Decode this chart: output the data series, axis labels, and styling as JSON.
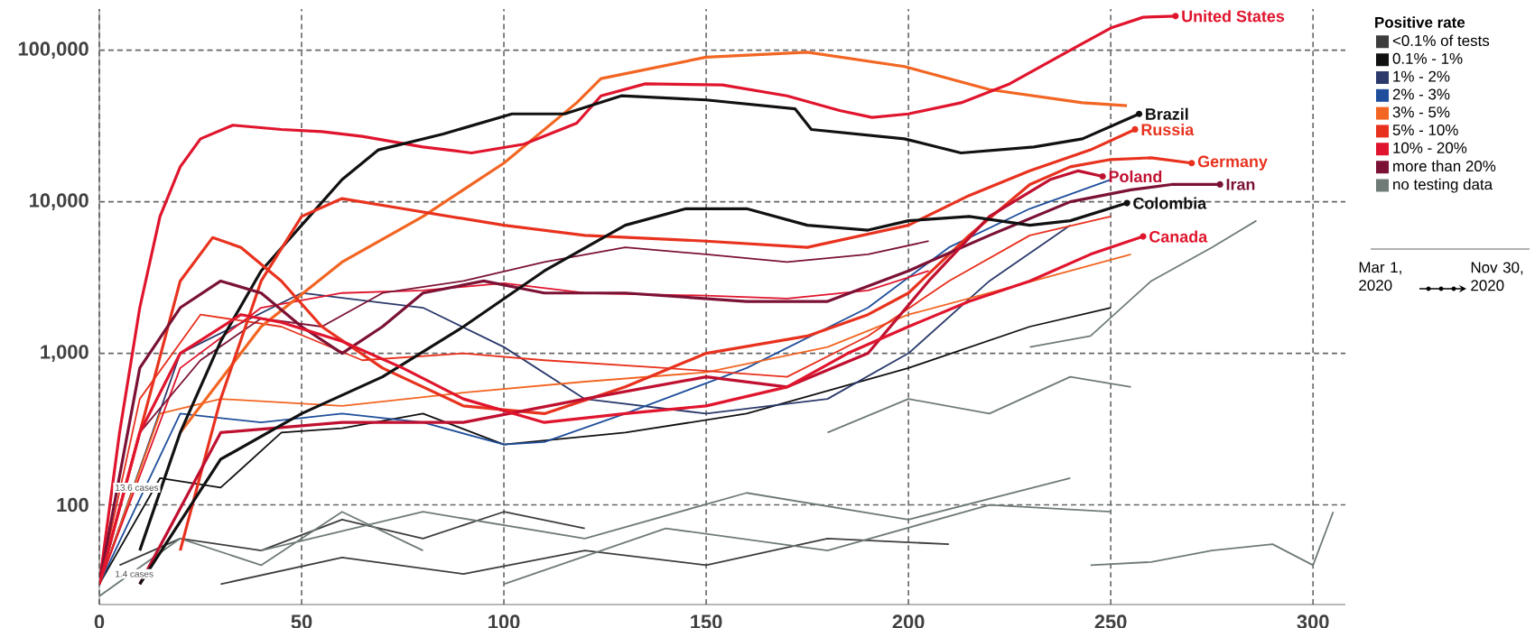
{
  "chart_data": {
    "type": "line",
    "legend_title": "Positive rate",
    "legend": "right",
    "grid": true,
    "log": "y",
    "marker": "none",
    "line_style": "solid",
    "xlim": [
      0,
      308
    ],
    "ylim": [
      22,
      187000
    ],
    "xticks": [
      0,
      50,
      100,
      150,
      200,
      250,
      300
    ],
    "yticks": [
      {
        "value": 100,
        "label": "100"
      },
      {
        "value": 1000,
        "label": "1,000"
      },
      {
        "value": 10000,
        "label": "10,000"
      },
      {
        "value": 100000,
        "label": "100,000"
      }
    ],
    "series": [
      {
        "name": "<0.1% of tests",
        "color": "#3d3d3d",
        "x": [
          5,
          20,
          40,
          60,
          80,
          100,
          120,
          null,
          30,
          60,
          90,
          120,
          150,
          180,
          210
        ],
        "values": [
          40,
          60,
          50,
          80,
          60,
          90,
          70,
          null,
          30,
          45,
          35,
          50,
          40,
          60,
          55
        ]
      },
      {
        "name": "0.1% - 1%",
        "color": "#111111",
        "x": [
          0,
          15,
          30,
          45,
          60,
          80,
          100,
          130,
          160,
          200,
          230,
          250
        ],
        "values": [
          30,
          150,
          130,
          300,
          320,
          400,
          250,
          300,
          400,
          800,
          1500,
          2000
        ]
      },
      {
        "name": "1% - 2%",
        "color": "#2b3a6b",
        "x": [
          0,
          20,
          50,
          80,
          100,
          120,
          150,
          180,
          200,
          220,
          240
        ],
        "values": [
          30,
          1000,
          2500,
          2000,
          1100,
          500,
          400,
          500,
          1000,
          3000,
          7000
        ]
      },
      {
        "name": "2% - 3%",
        "color": "#1f4e9c",
        "x": [
          0,
          20,
          40,
          60,
          80,
          100,
          110,
          130,
          160,
          190,
          210,
          230,
          250
        ],
        "values": [
          30,
          400,
          350,
          400,
          350,
          250,
          260,
          400,
          800,
          2000,
          5000,
          9000,
          14000
        ]
      },
      {
        "name": "3% - 5%",
        "color": "#f26522",
        "x": [
          0,
          15,
          30,
          60,
          90,
          120,
          150,
          180,
          200,
          220,
          240,
          255
        ],
        "values": [
          30,
          400,
          500,
          450,
          550,
          650,
          750,
          1100,
          1800,
          2500,
          3500,
          4500
        ]
      },
      {
        "name": "5% - 10%",
        "color": "#e8321e",
        "x": [
          0,
          10,
          25,
          45,
          65,
          90,
          110,
          140,
          170,
          190,
          210,
          230,
          250
        ],
        "values": [
          30,
          500,
          1800,
          1500,
          900,
          1000,
          900,
          800,
          700,
          1300,
          3000,
          6000,
          8000
        ]
      },
      {
        "name": "10% - 20%",
        "color": "#e0152d",
        "x": [
          0,
          20,
          40,
          60,
          80,
          100,
          120,
          150,
          170,
          190,
          205
        ],
        "values": [
          30,
          800,
          2000,
          2500,
          2600,
          2900,
          2500,
          2400,
          2300,
          2600,
          3500
        ]
      },
      {
        "name": "more than 20%",
        "color": "#7b1235",
        "x": [
          0,
          10,
          25,
          40,
          55,
          70,
          90,
          110,
          130,
          150,
          170,
          190,
          205
        ],
        "values": [
          30,
          300,
          900,
          1700,
          1500,
          2500,
          3000,
          4000,
          5000,
          4500,
          4000,
          4500,
          5500
        ]
      },
      {
        "name": "no testing data",
        "color": "#6e7b76",
        "x": [
          0,
          20,
          40,
          60,
          80,
          null,
          40,
          80,
          120,
          160,
          200,
          240,
          null,
          100,
          140,
          180,
          220,
          250,
          null,
          180,
          200,
          220,
          240,
          255,
          null,
          230,
          245,
          260,
          275,
          286,
          null,
          245,
          260,
          275,
          290,
          300,
          null,
          300,
          305
        ],
        "values": [
          25,
          60,
          40,
          90,
          50,
          null,
          50,
          90,
          60,
          120,
          80,
          150,
          null,
          30,
          70,
          50,
          100,
          90,
          null,
          300,
          500,
          400,
          700,
          600,
          null,
          1100,
          1300,
          3000,
          5000,
          7500,
          null,
          40,
          42,
          50,
          55,
          40,
          null,
          40,
          90
        ]
      },
      {
        "color": "#f26522",
        "x": [
          20,
          40,
          60,
          80,
          100,
          118,
          124,
          150,
          175,
          199,
          220,
          243,
          254
        ],
        "values": [
          300,
          1500,
          4000,
          8000,
          18000,
          45000,
          65000,
          90000,
          97000,
          78000,
          55000,
          45000,
          43000
        ]
      },
      {
        "color": "#e0152d",
        "x": [
          0,
          5,
          10,
          15,
          20,
          25,
          33,
          45,
          55,
          65,
          80,
          92,
          105,
          118,
          124,
          135,
          154,
          170,
          183,
          191,
          200,
          213,
          225,
          240,
          250,
          258,
          266
        ],
        "values": [
          30,
          300,
          2000,
          8000,
          17000,
          26000,
          32000,
          30000,
          29000,
          27000,
          23000,
          21000,
          24000,
          33000,
          50000,
          60000,
          59000,
          50000,
          40000,
          36000,
          38000,
          45000,
          60000,
          100000,
          140000,
          165000,
          168000
        ]
      },
      {
        "color": "#111111",
        "x": [
          10,
          20,
          30,
          40,
          50,
          60,
          69,
          85,
          102,
          115,
          129,
          150,
          172,
          176,
          199,
          213,
          231,
          243,
          257
        ],
        "values": [
          50,
          300,
          1200,
          3500,
          7000,
          14000,
          22000,
          28000,
          38000,
          38000,
          50000,
          47000,
          41000,
          30000,
          26000,
          21000,
          23000,
          26000,
          38000
        ]
      },
      {
        "color": "#e8321e",
        "x": [
          20,
          30,
          40,
          50,
          60,
          75,
          100,
          120,
          150,
          175,
          200,
          215,
          230,
          245,
          256
        ],
        "values": [
          50,
          500,
          3000,
          8000,
          10500,
          9000,
          7000,
          6000,
          5500,
          5000,
          7000,
          11000,
          16000,
          22000,
          30000
        ]
      },
      {
        "color": "#e8321e",
        "x": [
          0,
          10,
          20,
          28,
          35,
          45,
          55,
          70,
          90,
          110,
          130,
          150,
          175,
          190,
          200,
          215,
          230,
          240,
          250,
          260,
          270
        ],
        "values": [
          30,
          300,
          3000,
          5800,
          5000,
          3000,
          1500,
          800,
          450,
          400,
          600,
          1000,
          1300,
          1800,
          2500,
          6000,
          13000,
          17000,
          19000,
          19500,
          18000
        ]
      },
      {
        "color": "#7b1235",
        "x": [
          0,
          10,
          20,
          30,
          40,
          50,
          60,
          70,
          80,
          95,
          110,
          130,
          160,
          180,
          200,
          220,
          240,
          255,
          265,
          277
        ],
        "values": [
          30,
          800,
          2000,
          3000,
          2500,
          1500,
          1000,
          1500,
          2500,
          3000,
          2500,
          2500,
          2200,
          2200,
          3500,
          6000,
          10000,
          12000,
          13000,
          13000
        ]
      },
      {
        "color": "#c01030",
        "x": [
          10,
          30,
          60,
          90,
          120,
          150,
          170,
          190,
          205,
          220,
          235,
          242,
          248
        ],
        "values": [
          30,
          300,
          350,
          350,
          500,
          700,
          600,
          1000,
          3000,
          8000,
          14000,
          16000,
          14700
        ]
      },
      {
        "color": "#111111",
        "x": [
          10,
          30,
          50,
          70,
          90,
          110,
          130,
          145,
          160,
          175,
          190,
          200,
          215,
          230,
          240,
          254
        ],
        "values": [
          30,
          200,
          400,
          700,
          1500,
          3500,
          7000,
          9000,
          9000,
          7000,
          6500,
          7500,
          8000,
          7000,
          7500,
          9800
        ]
      },
      {
        "color": "#e0152d",
        "x": [
          0,
          10,
          20,
          35,
          45,
          60,
          75,
          90,
          110,
          130,
          150,
          170,
          185,
          200,
          215,
          230,
          245,
          258
        ],
        "values": [
          30,
          300,
          1000,
          1800,
          1600,
          1200,
          800,
          500,
          350,
          400,
          450,
          600,
          1000,
          1500,
          2200,
          3000,
          4500,
          5900
        ]
      }
    ],
    "annotations": [
      {
        "text": "United States",
        "x": 266,
        "y": 168000
      },
      {
        "text": "Brazil",
        "x": 257,
        "y": 38000
      },
      {
        "text": "Russia",
        "x": 256,
        "y": 30000
      },
      {
        "text": "Germany",
        "x": 270,
        "y": 18000
      },
      {
        "text": "Iran",
        "x": 277,
        "y": 13000
      },
      {
        "text": "Poland",
        "x": 248,
        "y": 14700
      },
      {
        "text": "Colombia",
        "x": 254,
        "y": 9800
      },
      {
        "text": "Canada",
        "x": 258,
        "y": 5900
      },
      {
        "text": "13.6 cases",
        "x": 2,
        "y": 130
      },
      {
        "text": "1.4 cases",
        "x": 2,
        "y": 35
      },
      "Mar 1, 2020",
      "Nov 30, 2020"
    ]
  }
}
